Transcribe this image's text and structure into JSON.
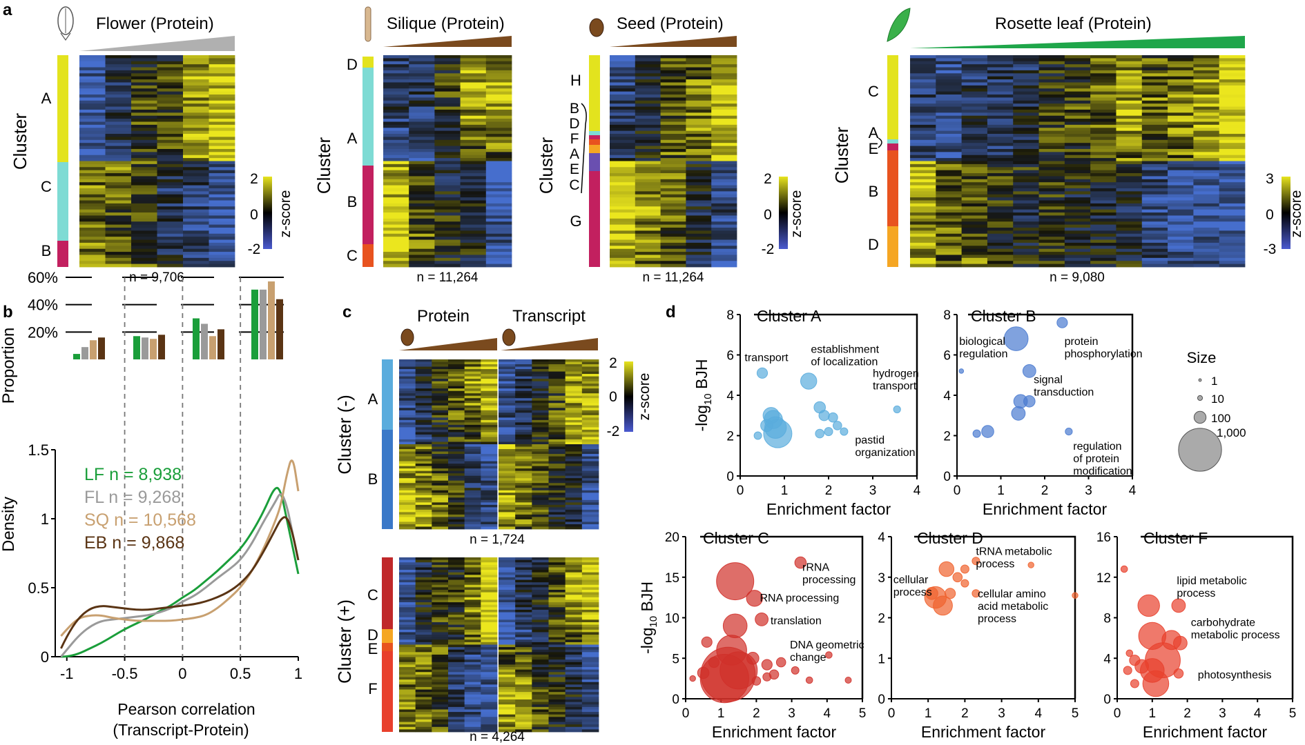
{
  "panel_letters": {
    "a": "a",
    "b": "b",
    "c": "c",
    "d": "d"
  },
  "colors": {
    "flower_ramp": "#b0b0b0",
    "silique_ramp": "#7a4a1e",
    "seed_ramp": "#7a4a1e",
    "leaf_ramp": "#1fa64a",
    "yellow": "#e3e31e",
    "teal": "#7edbd4",
    "magenta": "#c2205f",
    "orange_red": "#e8531f",
    "orange": "#f5a623",
    "purple": "#6a4fb0",
    "lightblue": "#5aacdd",
    "blue": "#3a78c8",
    "LF": "#1a9e3a",
    "FL": "#9a9a9a",
    "SQ": "#c8a070",
    "EB": "#5a3414"
  },
  "heatmaps": [
    {
      "title": "Flower (Protein)",
      "ylabel": "Cluster",
      "n": "n = 9,706",
      "clusters": [
        "A",
        "C",
        "B"
      ],
      "scale": {
        "max": "2",
        "mid": "0",
        "min": "-2",
        "label": "z-score"
      }
    },
    {
      "title": "Silique (Protein)",
      "ylabel": "Cluster",
      "n": "n = 11,264",
      "clusters": [
        "D",
        "A",
        "B",
        "C"
      ]
    },
    {
      "title": "Seed (Protein)",
      "ylabel": "Cluster",
      "n": "n = 11,264",
      "clusters": [
        "H",
        "B",
        "D",
        "F",
        "A",
        "E",
        "C",
        "G"
      ],
      "scale": {
        "max": "2",
        "mid": "0",
        "min": "-2",
        "label": "z-score"
      }
    },
    {
      "title": "Rosette leaf (Protein)",
      "ylabel": "Cluster",
      "n": "n = 9,080",
      "clusters": [
        "C",
        "A",
        "E",
        "B",
        "D"
      ],
      "scale": {
        "max": "3",
        "mid": "0",
        "min": "-3",
        "label": "z-score"
      }
    }
  ],
  "panel_c": {
    "protein_label": "Protein",
    "transcript_label": "Transcript",
    "top": {
      "ylabel": "Cluster (-)",
      "clusters": [
        "A",
        "B"
      ],
      "n": "n = 1,724"
    },
    "bottom": {
      "ylabel": "Cluster (+)",
      "clusters": [
        "C",
        "D",
        "E",
        "F"
      ],
      "n": "n = 4,264"
    },
    "scale": {
      "max": "2",
      "mid": "0",
      "min": "-2",
      "label": "z-score"
    }
  },
  "chart_data": [
    {
      "type": "bar",
      "name": "panel b top",
      "ylabel": "Proportion",
      "ytick_labels": [
        "60%",
        "40%",
        "20%"
      ],
      "yticks": [
        60,
        40,
        20
      ],
      "series": [
        {
          "name": "LF",
          "values": [
            4,
            17,
            30,
            51
          ]
        },
        {
          "name": "FL",
          "values": [
            9,
            16,
            26,
            51
          ]
        },
        {
          "name": "SQ",
          "values": [
            14,
            15,
            17,
            57
          ]
        },
        {
          "name": "EB",
          "values": [
            16,
            18,
            22,
            44
          ]
        }
      ]
    },
    {
      "type": "line",
      "name": "panel b bottom",
      "xlabel_line1": "Pearson correlation",
      "xlabel_line2": "(Transcript-Protein)",
      "ylabel": "Density",
      "xlim": [
        -1.1,
        1.0
      ],
      "ylim": [
        0,
        1.5
      ],
      "xticks": [
        -1,
        -0.5,
        0,
        0.5,
        1
      ],
      "xtick_labels": [
        "-1",
        "-0.5",
        "0",
        "0.5",
        "1"
      ],
      "yticks": [
        0,
        0.5,
        1,
        1.5
      ],
      "ytick_labels": [
        "0",
        "0.5",
        "1",
        "1.5"
      ],
      "dashed_x": [
        -0.5,
        0,
        0.5
      ],
      "legend": [
        "LF n = 8,938",
        "FL n = 9,268",
        "SQ n = 10,568",
        "EB n = 9,868"
      ],
      "series": [
        {
          "name": "LF",
          "x": [
            -1.05,
            -1,
            -0.9,
            -0.8,
            -0.7,
            -0.6,
            -0.5,
            -0.4,
            -0.3,
            -0.2,
            -0.1,
            0,
            0.1,
            0.2,
            0.3,
            0.4,
            0.5,
            0.6,
            0.7,
            0.8,
            0.85,
            0.9,
            0.95,
            1.0
          ],
          "y": [
            0.0,
            0.0,
            0.02,
            0.06,
            0.1,
            0.15,
            0.2,
            0.24,
            0.28,
            0.33,
            0.37,
            0.43,
            0.48,
            0.55,
            0.62,
            0.7,
            0.78,
            0.9,
            1.05,
            1.24,
            1.2,
            1.0,
            0.8,
            0.6
          ]
        },
        {
          "name": "FL",
          "x": [
            -1.05,
            -1,
            -0.9,
            -0.8,
            -0.7,
            -0.6,
            -0.5,
            -0.4,
            -0.3,
            -0.2,
            -0.1,
            0,
            0.1,
            0.2,
            0.3,
            0.4,
            0.5,
            0.6,
            0.7,
            0.8,
            0.85,
            0.9,
            0.95,
            1.0
          ],
          "y": [
            0.0,
            0.05,
            0.15,
            0.22,
            0.26,
            0.27,
            0.28,
            0.29,
            0.3,
            0.32,
            0.35,
            0.4,
            0.44,
            0.5,
            0.57,
            0.63,
            0.7,
            0.82,
            0.98,
            1.12,
            1.2,
            1.1,
            0.9,
            0.7
          ]
        },
        {
          "name": "SQ",
          "x": [
            -1.05,
            -1,
            -0.9,
            -0.8,
            -0.7,
            -0.6,
            -0.5,
            -0.4,
            -0.3,
            -0.2,
            -0.1,
            0,
            0.1,
            0.2,
            0.3,
            0.4,
            0.5,
            0.6,
            0.7,
            0.8,
            0.85,
            0.9,
            0.95,
            1.0
          ],
          "y": [
            0.15,
            0.2,
            0.28,
            0.3,
            0.3,
            0.28,
            0.27,
            0.26,
            0.26,
            0.26,
            0.26,
            0.27,
            0.28,
            0.3,
            0.35,
            0.42,
            0.5,
            0.62,
            0.78,
            0.98,
            1.1,
            1.32,
            1.47,
            1.2
          ]
        },
        {
          "name": "EB",
          "x": [
            -1.05,
            -1,
            -0.9,
            -0.8,
            -0.7,
            -0.6,
            -0.5,
            -0.4,
            -0.3,
            -0.2,
            -0.1,
            0,
            0.1,
            0.2,
            0.3,
            0.4,
            0.5,
            0.6,
            0.7,
            0.8,
            0.85,
            0.9,
            0.95,
            1.0
          ],
          "y": [
            0.06,
            0.15,
            0.28,
            0.35,
            0.37,
            0.36,
            0.35,
            0.34,
            0.34,
            0.35,
            0.36,
            0.37,
            0.38,
            0.4,
            0.43,
            0.47,
            0.53,
            0.62,
            0.76,
            0.92,
            1.0,
            1.02,
            0.9,
            0.7
          ]
        }
      ]
    },
    {
      "type": "scatter",
      "name": "Cluster A",
      "title": "Cluster A",
      "xlabel": "Enrichment factor",
      "ylabel": "-log10 BJH",
      "xlim": [
        0,
        4
      ],
      "ylim": [
        0,
        8
      ],
      "xticks": [
        0,
        1,
        2,
        3,
        4
      ],
      "yticks": [
        0,
        2,
        4,
        6,
        8
      ],
      "color": "#5aacdd",
      "points": [
        {
          "x": 0.5,
          "y": 5.1,
          "size": 20
        },
        {
          "x": 0.7,
          "y": 3.0,
          "size": 60
        },
        {
          "x": 0.8,
          "y": 2.4,
          "size": 120
        },
        {
          "x": 0.85,
          "y": 2.1,
          "size": 220
        },
        {
          "x": 0.6,
          "y": 2.5,
          "size": 30
        },
        {
          "x": 0.4,
          "y": 2.0,
          "size": 8
        },
        {
          "x": 0.75,
          "y": 2.8,
          "size": 80
        },
        {
          "x": 1.55,
          "y": 4.7,
          "size": 60
        },
        {
          "x": 1.8,
          "y": 3.4,
          "size": 25
        },
        {
          "x": 1.9,
          "y": 3.0,
          "size": 20
        },
        {
          "x": 2.1,
          "y": 2.9,
          "size": 15
        },
        {
          "x": 2.2,
          "y": 2.5,
          "size": 12
        },
        {
          "x": 1.8,
          "y": 2.1,
          "size": 12
        },
        {
          "x": 2.0,
          "y": 2.2,
          "size": 10
        },
        {
          "x": 2.35,
          "y": 2.2,
          "size": 8
        },
        {
          "x": 3.55,
          "y": 3.3,
          "size": 6
        }
      ],
      "annotations": [
        {
          "text": [
            "transport"
          ],
          "x": 0.1,
          "y": 5.7
        },
        {
          "text": [
            "establishment",
            "of localization"
          ],
          "x": 1.6,
          "y": 6.1
        },
        {
          "text": [
            "hydrogen",
            "transport"
          ],
          "x": 3.0,
          "y": 4.9
        },
        {
          "text": [
            "pastid",
            "organization"
          ],
          "x": 2.6,
          "y": 1.6
        }
      ]
    },
    {
      "type": "scatter",
      "name": "Cluster B",
      "title": "Cluster B",
      "xlabel": "Enrichment factor",
      "ylabel": "",
      "xlim": [
        0,
        4
      ],
      "ylim": [
        0,
        8
      ],
      "xticks": [
        0,
        1,
        2,
        3,
        4
      ],
      "yticks": [
        0,
        2,
        4,
        6,
        8
      ],
      "color": "#4a7bd0",
      "points": [
        {
          "x": 1.35,
          "y": 6.8,
          "size": 150
        },
        {
          "x": 2.4,
          "y": 7.6,
          "size": 20
        },
        {
          "x": 1.65,
          "y": 5.2,
          "size": 35
        },
        {
          "x": 1.45,
          "y": 3.7,
          "size": 40
        },
        {
          "x": 1.4,
          "y": 3.1,
          "size": 40
        },
        {
          "x": 1.65,
          "y": 3.7,
          "size": 25
        },
        {
          "x": 0.7,
          "y": 2.2,
          "size": 30
        },
        {
          "x": 0.45,
          "y": 2.1,
          "size": 8
        },
        {
          "x": 2.55,
          "y": 2.2,
          "size": 6
        },
        {
          "x": 0.1,
          "y": 5.2,
          "size": 1
        }
      ],
      "annotations": [
        {
          "text": [
            "biological",
            "regulation"
          ],
          "x": 0.05,
          "y": 6.5
        },
        {
          "text": [
            "protein",
            "phosphorylation"
          ],
          "x": 2.45,
          "y": 6.5
        },
        {
          "text": [
            "signal",
            "transduction"
          ],
          "x": 1.75,
          "y": 4.6
        },
        {
          "text": [
            "regulation",
            "of protein",
            "modification"
          ],
          "x": 2.65,
          "y": 1.3
        }
      ]
    },
    {
      "type": "scatter",
      "name": "Size legend",
      "title": "Size",
      "legend": [
        {
          "label": "1",
          "size": 1
        },
        {
          "label": "10",
          "size": 10
        },
        {
          "label": "100",
          "size": 100
        },
        {
          "label": "1,000",
          "size": 1000
        }
      ]
    },
    {
      "type": "scatter",
      "name": "Cluster C",
      "title": "Cluster C",
      "xlabel": "Enrichment factor",
      "ylabel": "-log10 BJH",
      "xlim": [
        0,
        5
      ],
      "ylim": [
        0,
        20
      ],
      "xticks": [
        0,
        1,
        2,
        3,
        4,
        5
      ],
      "yticks": [
        0,
        5,
        10,
        15,
        20
      ],
      "color": "#d0302a",
      "points": [
        {
          "x": 1.4,
          "y": 14.5,
          "size": 400
        },
        {
          "x": 1.95,
          "y": 12.4,
          "size": 60
        },
        {
          "x": 1.4,
          "y": 9.0,
          "size": 150
        },
        {
          "x": 2.15,
          "y": 9.8,
          "size": 35
        },
        {
          "x": 3.25,
          "y": 16.8,
          "size": 25
        },
        {
          "x": 1.3,
          "y": 6.0,
          "size": 250
        },
        {
          "x": 1.2,
          "y": 3.0,
          "size": 900
        },
        {
          "x": 1.5,
          "y": 3.5,
          "size": 400
        },
        {
          "x": 1.1,
          "y": 2.5,
          "size": 700
        },
        {
          "x": 0.8,
          "y": 4.5,
          "size": 20
        },
        {
          "x": 0.6,
          "y": 7.0,
          "size": 20
        },
        {
          "x": 0.5,
          "y": 3.2,
          "size": 25
        },
        {
          "x": 1.9,
          "y": 5.0,
          "size": 30
        },
        {
          "x": 2.3,
          "y": 4.2,
          "size": 20
        },
        {
          "x": 2.7,
          "y": 4.5,
          "size": 15
        },
        {
          "x": 2.5,
          "y": 3.0,
          "size": 15
        },
        {
          "x": 2.3,
          "y": 2.7,
          "size": 10
        },
        {
          "x": 2.0,
          "y": 2.2,
          "size": 12
        },
        {
          "x": 3.1,
          "y": 3.5,
          "size": 8
        },
        {
          "x": 3.5,
          "y": 2.3,
          "size": 5
        },
        {
          "x": 4.05,
          "y": 5.4,
          "size": 5
        },
        {
          "x": 4.6,
          "y": 2.3,
          "size": 4
        },
        {
          "x": 0.2,
          "y": 2.5,
          "size": 3
        }
      ],
      "annotations": [
        {
          "text": [
            "rRNA",
            "processing"
          ],
          "x": 3.3,
          "y": 15.8
        },
        {
          "text": [
            "RNA processing"
          ],
          "x": 2.1,
          "y": 12.0
        },
        {
          "text": [
            "translation"
          ],
          "x": 2.4,
          "y": 9.2
        },
        {
          "text": [
            "DNA geometric",
            "change"
          ],
          "x": 2.95,
          "y": 6.2
        }
      ]
    },
    {
      "type": "scatter",
      "name": "Cluster D",
      "title": "Cluster D",
      "xlabel": "Enrichment factor",
      "ylabel": "",
      "xlim": [
        0,
        5
      ],
      "ylim": [
        0,
        4
      ],
      "xticks": [
        0,
        1,
        2,
        3,
        4,
        5
      ],
      "yticks": [
        0,
        1,
        2,
        3,
        4
      ],
      "color": "#f0622e",
      "points": [
        {
          "x": 1.5,
          "y": 3.2,
          "size": 50
        },
        {
          "x": 1.8,
          "y": 3.0,
          "size": 15
        },
        {
          "x": 2.0,
          "y": 3.2,
          "size": 10
        },
        {
          "x": 2.3,
          "y": 3.4,
          "size": 8
        },
        {
          "x": 2.0,
          "y": 2.85,
          "size": 8
        },
        {
          "x": 1.2,
          "y": 2.5,
          "size": 120
        },
        {
          "x": 1.4,
          "y": 2.3,
          "size": 90
        },
        {
          "x": 1.1,
          "y": 2.6,
          "size": 30
        },
        {
          "x": 1.6,
          "y": 2.6,
          "size": 20
        },
        {
          "x": 2.3,
          "y": 2.6,
          "size": 8
        },
        {
          "x": 3.8,
          "y": 3.3,
          "size": 3
        },
        {
          "x": 5.0,
          "y": 2.55,
          "size": 3
        }
      ],
      "annotations": [
        {
          "text": [
            "tRNA metabolic",
            "process"
          ],
          "x": 2.3,
          "y": 3.55
        },
        {
          "text": [
            "cellular",
            "process"
          ],
          "x": 0.05,
          "y": 2.85
        },
        {
          "text": [
            "cellular amino",
            "acid metabolic",
            "process"
          ],
          "x": 2.35,
          "y": 2.5
        }
      ]
    },
    {
      "type": "scatter",
      "name": "Cluster F",
      "title": "Cluster F",
      "xlabel": "Enrichment factor",
      "ylabel": "",
      "xlim": [
        0,
        5
      ],
      "ylim": [
        0,
        16
      ],
      "xticks": [
        0,
        1,
        2,
        3,
        4,
        5
      ],
      "yticks": [
        0,
        4,
        8,
        12,
        16
      ],
      "color": "#e8402c",
      "points": [
        {
          "x": 0.9,
          "y": 9.2,
          "size": 120
        },
        {
          "x": 1.75,
          "y": 9.2,
          "size": 40
        },
        {
          "x": 1.0,
          "y": 6.2,
          "size": 200
        },
        {
          "x": 1.55,
          "y": 5.8,
          "size": 90
        },
        {
          "x": 1.8,
          "y": 5.5,
          "size": 40
        },
        {
          "x": 1.3,
          "y": 3.8,
          "size": 350
        },
        {
          "x": 1.0,
          "y": 2.8,
          "size": 150
        },
        {
          "x": 0.7,
          "y": 3.2,
          "size": 40
        },
        {
          "x": 1.1,
          "y": 1.5,
          "size": 180
        },
        {
          "x": 0.5,
          "y": 3.8,
          "size": 20
        },
        {
          "x": 0.3,
          "y": 2.8,
          "size": 10
        },
        {
          "x": 0.2,
          "y": 12.8,
          "size": 5
        },
        {
          "x": 0.35,
          "y": 4.5,
          "size": 5
        },
        {
          "x": 0.5,
          "y": 1.5,
          "size": 10
        },
        {
          "x": 1.75,
          "y": 2.5,
          "size": 15
        }
      ],
      "annotations": [
        {
          "text": [
            "lipid metabolic",
            "process"
          ],
          "x": 1.7,
          "y": 11.3
        },
        {
          "text": [
            "carbohydrate",
            "metabolic process"
          ],
          "x": 2.1,
          "y": 7.2
        },
        {
          "text": [
            "photosynthesis"
          ],
          "x": 2.3,
          "y": 2.0
        }
      ]
    }
  ]
}
